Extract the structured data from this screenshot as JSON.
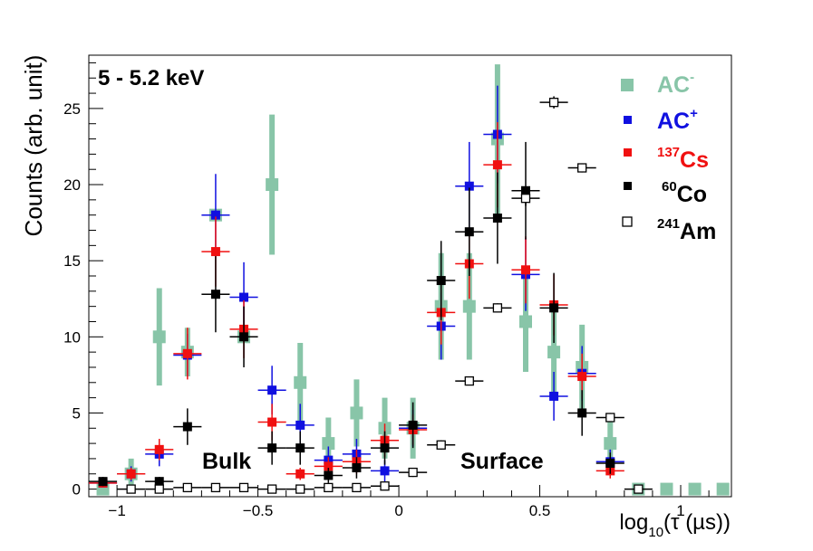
{
  "chart_data": {
    "type": "scatter",
    "title": "5 - 5.2 keV",
    "xlabel": "log10(τ (µs))",
    "xlabel_parts": {
      "base": "log",
      "sub": "10",
      "rest": "(τ (µs))"
    },
    "ylabel": "Counts (arb. unit)",
    "xlim": [
      -1.1,
      1.18
    ],
    "ylim": [
      -0.5,
      28.5
    ],
    "xticks": [
      -1,
      -0.5,
      0,
      0.5,
      1
    ],
    "xtick_labels": [
      "−1",
      "−0.5",
      "0",
      "0.5",
      "1"
    ],
    "yticks": [
      0,
      5,
      10,
      15,
      20,
      25
    ],
    "ytick_labels": [
      "0",
      "5",
      "10",
      "15",
      "20",
      "25"
    ],
    "annotations": [
      {
        "text": "Bulk",
        "x": -0.69,
        "y": 1.7
      },
      {
        "text": "Surface",
        "x": 0.3,
        "y": 1.7
      }
    ],
    "legend_position": "top-right",
    "series": [
      {
        "name": "AC-",
        "legend_main": "AC",
        "legend_sup": "-",
        "legend_pre": "",
        "color": "#88c5a8",
        "marker": "square-large",
        "x": [
          -1.05,
          -0.95,
          -0.85,
          -0.75,
          -0.65,
          -0.55,
          -0.45,
          -0.35,
          -0.25,
          -0.15,
          -0.05,
          0.05,
          0.15,
          0.25,
          0.35,
          0.45,
          0.55,
          0.65,
          0.75,
          0.85,
          0.95,
          1.05,
          1.15
        ],
        "y": [
          0.0,
          1.0,
          10.0,
          9.0,
          18.0,
          10.0,
          20.0,
          7.0,
          3.0,
          5.0,
          4.0,
          4.0,
          12.0,
          12.0,
          23.0,
          11.0,
          9.0,
          8.0,
          3.0,
          0.0,
          0.0,
          0.0,
          0.0
        ],
        "err": [
          0.0,
          1.0,
          3.2,
          1.6,
          0.0,
          0.0,
          4.6,
          2.6,
          1.7,
          2.2,
          2.0,
          2.0,
          3.5,
          3.5,
          4.9,
          3.3,
          3.0,
          2.8,
          1.7,
          0.0,
          0.0,
          0.0,
          0.0
        ]
      },
      {
        "name": "AC+",
        "legend_main": "AC",
        "legend_sup": "+",
        "legend_pre": "",
        "color": "#1010e0",
        "marker": "square",
        "x": [
          -1.05,
          -0.95,
          -0.85,
          -0.75,
          -0.65,
          -0.55,
          -0.45,
          -0.35,
          -0.25,
          -0.15,
          -0.05,
          0.05,
          0.15,
          0.25,
          0.35,
          0.45,
          0.55,
          0.65,
          0.75
        ],
        "y": [
          0.4,
          1.0,
          2.3,
          8.8,
          18.0,
          12.6,
          6.5,
          4.2,
          1.9,
          2.3,
          1.2,
          4.0,
          10.7,
          19.9,
          23.3,
          14.1,
          6.1,
          7.6,
          1.8
        ],
        "err": [
          0.3,
          0.5,
          0.8,
          1.4,
          2.7,
          2.3,
          1.6,
          1.4,
          0.9,
          1.0,
          0.7,
          1.2,
          2.2,
          2.9,
          3.2,
          2.4,
          1.6,
          1.8,
          0.8
        ]
      },
      {
        "name": "137Cs",
        "legend_main": "Cs",
        "legend_sup": "",
        "legend_pre": "137",
        "color": "#f01010",
        "marker": "square",
        "x": [
          -1.05,
          -0.95,
          -0.85,
          -0.75,
          -0.65,
          -0.55,
          -0.45,
          -0.35,
          -0.25,
          -0.15,
          -0.05,
          0.05,
          0.15,
          0.25,
          0.35,
          0.45,
          0.55,
          0.65,
          0.75
        ],
        "y": [
          0.4,
          1.0,
          2.6,
          8.9,
          15.6,
          10.5,
          4.4,
          1.0,
          1.5,
          1.8,
          3.2,
          3.9,
          11.6,
          14.8,
          21.3,
          14.4,
          12.1,
          7.4,
          1.2
        ],
        "err": [
          0.3,
          0.4,
          0.7,
          1.7,
          2.3,
          1.9,
          1.2,
          0.4,
          0.6,
          0.8,
          1.1,
          1.0,
          2.1,
          2.3,
          2.8,
          2.2,
          2.0,
          1.5,
          0.5
        ]
      },
      {
        "name": "60Co",
        "legend_main": "Co",
        "legend_sup": "",
        "legend_pre": "60",
        "color": "#000000",
        "marker": "square",
        "x": [
          -1.05,
          -0.85,
          -0.75,
          -0.65,
          -0.55,
          -0.45,
          -0.35,
          -0.25,
          -0.15,
          -0.05,
          0.05,
          0.15,
          0.25,
          0.35,
          0.45,
          0.55,
          0.65,
          0.75
        ],
        "y": [
          0.5,
          0.5,
          4.1,
          12.8,
          10.0,
          2.7,
          2.7,
          0.9,
          1.4,
          2.7,
          4.2,
          13.7,
          16.9,
          17.8,
          19.6,
          11.9,
          5.0,
          1.7
        ],
        "err": [
          0.3,
          0.3,
          1.2,
          2.5,
          2.0,
          1.1,
          1.1,
          0.5,
          0.7,
          1.1,
          1.5,
          2.6,
          2.9,
          3.0,
          3.2,
          2.3,
          1.5,
          0.7
        ]
      },
      {
        "name": "241Am",
        "legend_main": "Am",
        "legend_sup": "",
        "legend_pre": "241",
        "color": "#000000",
        "marker": "open-square",
        "x": [
          -0.95,
          -0.85,
          -0.75,
          -0.65,
          -0.55,
          -0.45,
          -0.35,
          -0.25,
          -0.15,
          -0.05,
          0.05,
          0.15,
          0.25,
          0.35,
          0.45,
          0.55,
          0.65,
          0.75,
          0.85
        ],
        "y": [
          0.0,
          0.0,
          0.1,
          0.1,
          0.1,
          0.0,
          0.0,
          0.1,
          0.1,
          0.2,
          1.1,
          2.9,
          7.1,
          11.9,
          19.1,
          25.4,
          21.1,
          4.7,
          0.0
        ],
        "err": [
          0.0,
          0.0,
          0.1,
          0.1,
          0.1,
          0.0,
          0.0,
          0.1,
          0.1,
          0.2,
          0.3,
          0.3,
          0.2,
          0.3,
          0.5,
          0.4,
          0.3,
          0.3,
          0.0
        ]
      }
    ]
  }
}
